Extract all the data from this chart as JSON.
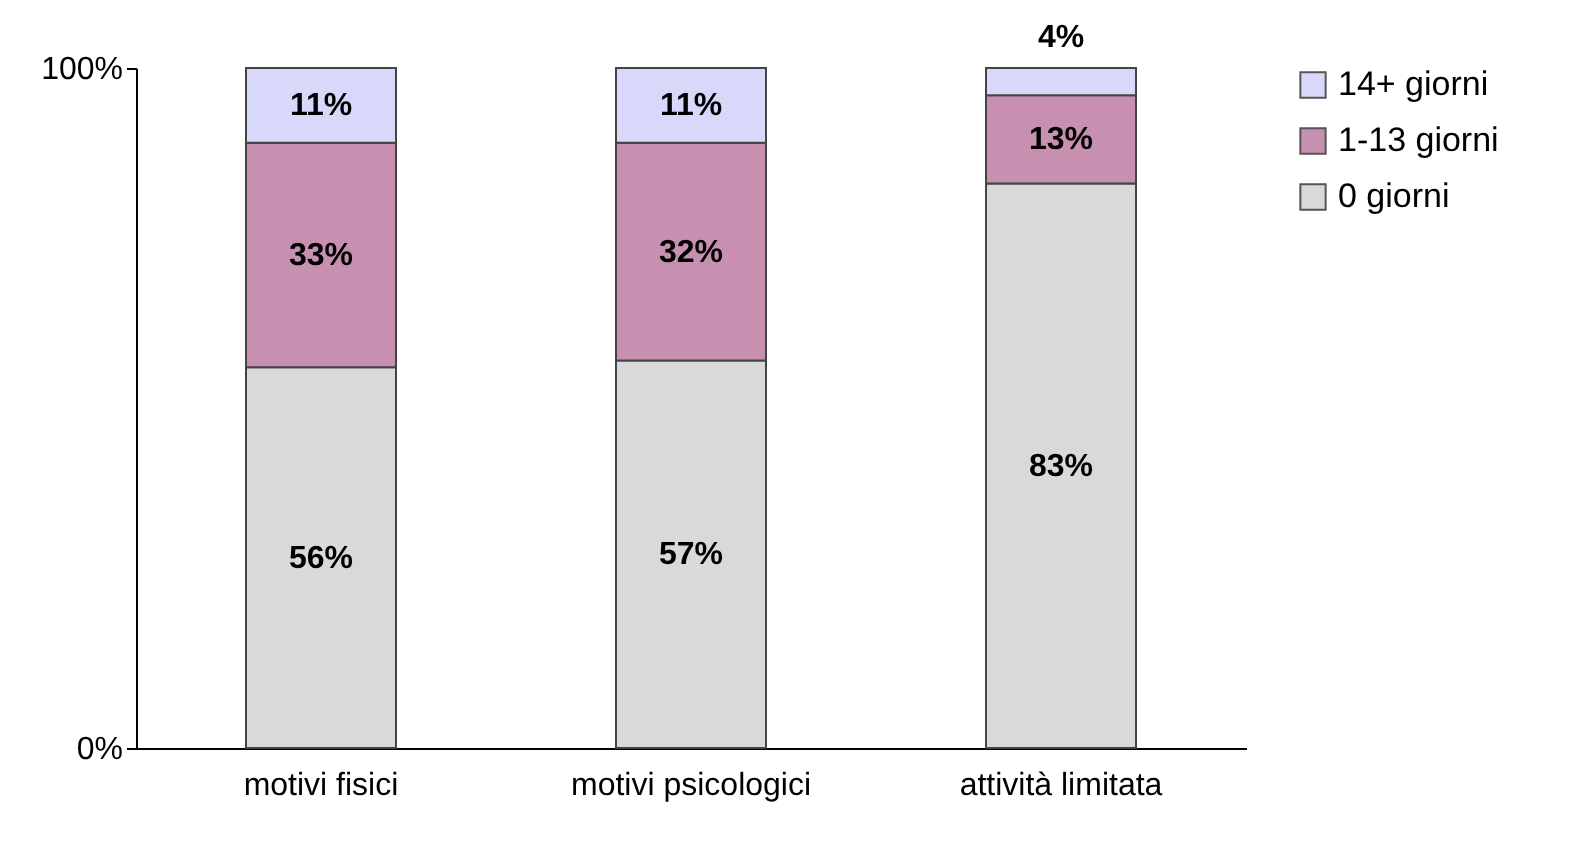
{
  "chart_data": {
    "type": "bar",
    "stacked": true,
    "categories": [
      "motivi fisici",
      "motivi psicologici",
      "attività limitata"
    ],
    "series": [
      {
        "name": "0 giorni",
        "color": "#d9d9d9",
        "values": [
          56,
          57,
          83
        ],
        "value_labels": [
          "56%",
          "57%",
          "83%"
        ]
      },
      {
        "name": "1-13 giorni",
        "color": "#c890b0",
        "values": [
          33,
          32,
          13
        ],
        "value_labels": [
          "33%",
          "32%",
          "13%"
        ]
      },
      {
        "name": "14+ giorni",
        "color": "#d8d8fa",
        "values": [
          11,
          11,
          4
        ],
        "value_labels": [
          "11%",
          "11%",
          "4%"
        ]
      }
    ],
    "ylim": [
      0,
      100
    ],
    "yticks": [
      {
        "value": 0,
        "label": "0%"
      },
      {
        "value": 100,
        "label": "100%"
      }
    ],
    "legend": "right",
    "grid": false
  }
}
